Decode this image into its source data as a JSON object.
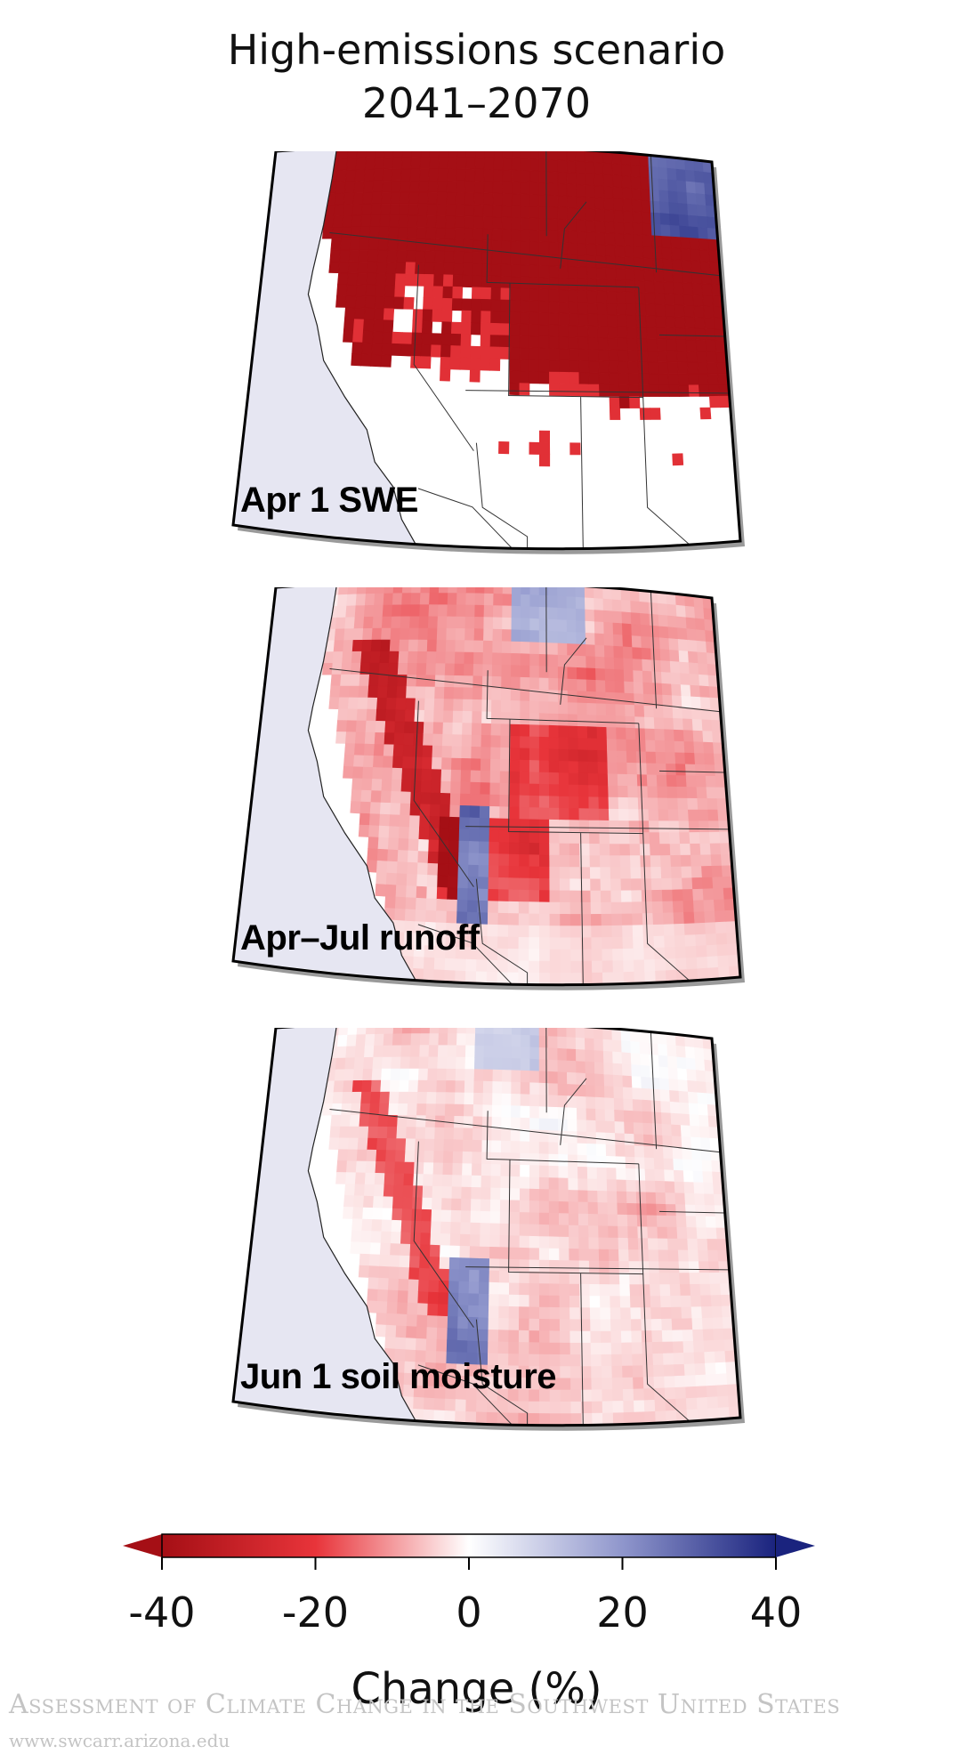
{
  "title": {
    "line1": "High-emissions scenario",
    "line2": "2041–2070"
  },
  "panels": [
    {
      "label": "Apr 1 SWE",
      "variable": "april_1_snow_water_equivalent",
      "dominant_change": "strong decrease",
      "icon": "western-us-map"
    },
    {
      "label": "Apr–Jul runoff",
      "variable": "april_july_runoff",
      "dominant_change": "moderate decrease",
      "icon": "western-us-map"
    },
    {
      "label": "Jun 1 soil moisture",
      "variable": "june_1_soil_moisture",
      "dominant_change": "slight decrease",
      "icon": "western-us-map"
    }
  ],
  "colorbar": {
    "title": "Change (%)",
    "min": -40,
    "max": 40,
    "ticks": [
      "-40",
      "-20",
      "0",
      "20",
      "40"
    ],
    "colors": {
      "negative": "#a50f15",
      "mid_negative": "#e8343a",
      "zero": "#ffffff",
      "mid_positive": "#8f96cc",
      "positive": "#1a237e"
    }
  },
  "colors": {
    "ocean": "#e6e6f2",
    "land": "#ffffff",
    "border": "#333333"
  },
  "credit": {
    "line1": "Assessment of Climate Change in the Southwest United States",
    "line2": "www.swcarr.arizona.edu"
  }
}
